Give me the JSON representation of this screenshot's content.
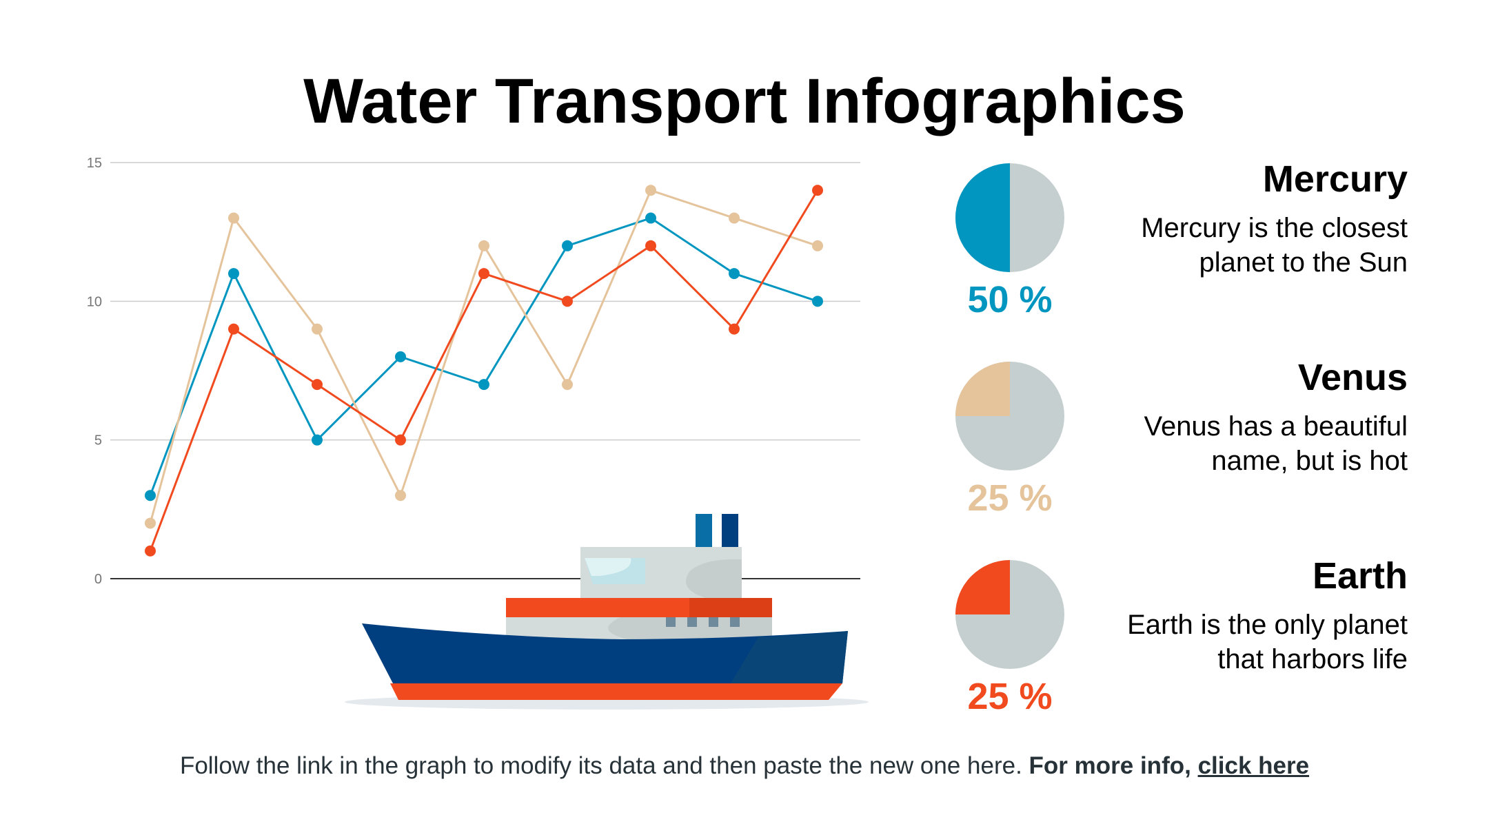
{
  "title": "Water Transport Infographics",
  "colors": {
    "blue": "#0096c0",
    "beige": "#e5c39b",
    "orange": "#f04a1e",
    "pie_bg": "#c5cfcf",
    "navy": "#003f7f",
    "grid": "#cccccc",
    "axis": "#333333"
  },
  "chart_data": {
    "type": "line",
    "x": [
      1,
      2,
      3,
      4,
      5,
      6,
      7,
      8,
      9
    ],
    "ylim": [
      0,
      15
    ],
    "yticks": [
      0,
      5,
      10,
      15
    ],
    "grid": true,
    "series": [
      {
        "color_key": "blue",
        "values": [
          3,
          11,
          5,
          8,
          7,
          12,
          13,
          11,
          10
        ]
      },
      {
        "color_key": "beige",
        "values": [
          2,
          13,
          9,
          3,
          12,
          7,
          14,
          13,
          12
        ]
      },
      {
        "color_key": "orange",
        "values": [
          1,
          9,
          7,
          5,
          11,
          10,
          12,
          9,
          14
        ]
      }
    ]
  },
  "items": [
    {
      "name": "Mercury",
      "desc_line1": "Mercury is the closest",
      "desc_line2": "planet to the Sun",
      "percent": 50,
      "percent_label": "50 %",
      "color_key": "blue"
    },
    {
      "name": "Venus",
      "desc_line1": "Venus has a beautiful",
      "desc_line2": "name, but is hot",
      "percent": 25,
      "percent_label": "25 %",
      "color_key": "beige"
    },
    {
      "name": "Earth",
      "desc_line1": "Earth is the only planet",
      "desc_line2": "that harbors life",
      "percent": 25,
      "percent_label": "25 %",
      "color_key": "orange"
    }
  ],
  "footer": {
    "text": "Follow the link in the graph to modify its data and then paste the new one here.",
    "bold_text": "For more info,",
    "link_text": "click here"
  }
}
